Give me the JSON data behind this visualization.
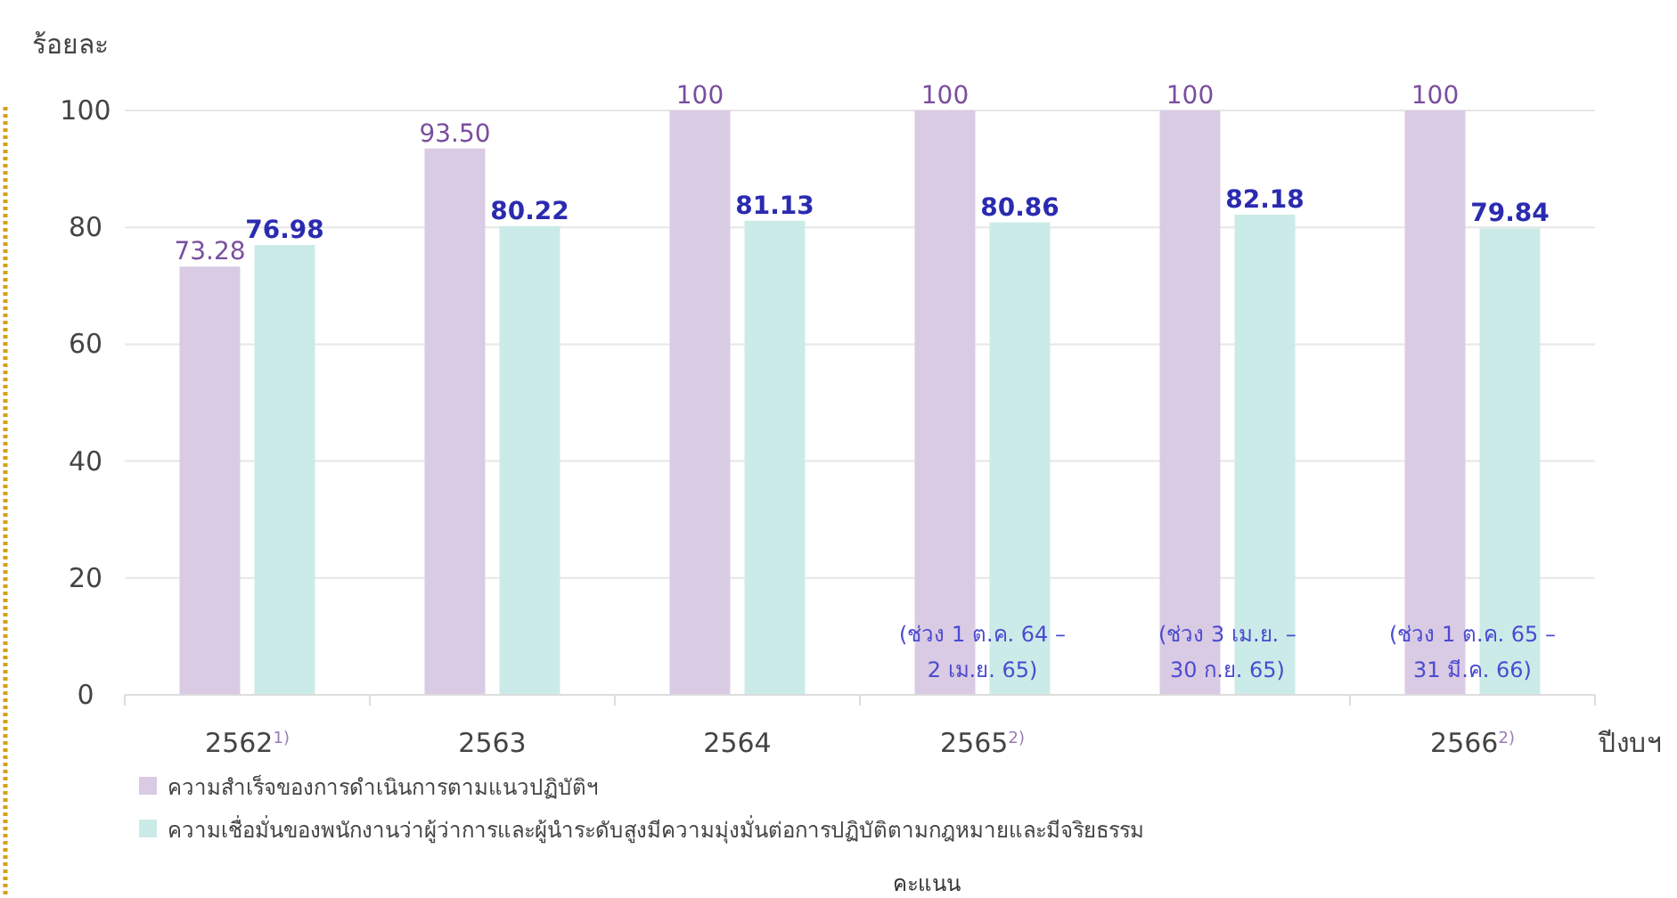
{
  "chart_data": {
    "type": "bar",
    "ylabel": "ร้อยละ",
    "xlabel": "ปีงบฯ",
    "categories": [
      "2562$^{1)}$",
      "2563",
      "2564",
      "2565$^{2)}$",
      null,
      "2566$^{2)}$"
    ],
    "series": [
      {
        "name": "ความสำเร็จของการดำเนินการตามแนวปฏิบัติฯ",
        "color": "#dacbe4",
        "values": [
          73.28,
          93.5,
          100,
          100,
          100,
          100
        ],
        "value_labels": [
          "73.28",
          "93.50",
          "100",
          "100",
          "100",
          "100"
        ]
      },
      {
        "name": "ความเชื่อมั่นของพนักงานว่าผู้ว่าการและผู้นำระดับสูงมีความมุ่งมั่นต่อการปฏิบัติตามกฎหมายและมีจริยธรรม",
        "color": "#cbebe8",
        "values": [
          76.98,
          80.22,
          81.13,
          80.86,
          82.18,
          79.84
        ],
        "value_labels": [
          "76.98",
          "80.22",
          "81.13",
          "80.86",
          "82.18",
          "79.84"
        ]
      }
    ],
    "ylim": [
      0,
      100
    ],
    "yticks": [
      0,
      20,
      40,
      60,
      80,
      100
    ],
    "grid": "y",
    "legend": "bottom",
    "annotations": [
      "(ช่วง 1 ต.ค. 64 –\n2 เม.ย. 65)",
      "(ช่วง 3 เม.ย. –\n30 ก.ย. 65)",
      "(ช่วง 1 ต.ค. 65 –\n31 มี.ค. 66)",
      "คะแนน"
    ]
  }
}
